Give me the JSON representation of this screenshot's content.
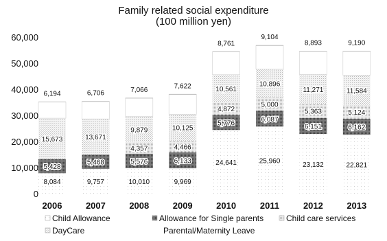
{
  "chart_data": {
    "type": "bar",
    "stacked": true,
    "title": "Family related social expenditure",
    "subtitle": "(100 million yen)",
    "xlabel": "",
    "ylabel": "",
    "ylim": [
      0,
      60000
    ],
    "yticks": [
      "0",
      "10,000",
      "20,000",
      "30,000",
      "40,000",
      "50,000",
      "60,000"
    ],
    "grid": false,
    "legend_position": "bottom",
    "categories": [
      "2006",
      "2007",
      "2008",
      "2009",
      "2010",
      "2011",
      "2012",
      "2013"
    ],
    "series": [
      {
        "name": "Child Allowance",
        "values": [
          8084,
          9757,
          10010,
          9969,
          24641,
          25960,
          23132,
          22821
        ],
        "labels": [
          "8,084",
          "9,757",
          "10,010",
          "9,969",
          "24,641",
          "25,960",
          "23,132",
          "22,821"
        ],
        "color": "#f1f1f1"
      },
      {
        "name": "Allowance for Single parents",
        "values": [
          5428,
          5468,
          5576,
          6133,
          5776,
          6087,
          6151,
          6162
        ],
        "labels": [
          "5,428",
          "5,468",
          "5,576",
          "6,133",
          "5,776",
          "6,087",
          "6,151",
          "6,162"
        ],
        "color": "#6b6b6b"
      },
      {
        "name": "Child care services",
        "values": [
          0,
          0,
          4357,
          4466,
          4872,
          5000,
          5363,
          5124
        ],
        "labels": [
          "",
          "",
          "4,357",
          "4,466",
          "4,872",
          "5,000",
          "5,363",
          "5,124"
        ],
        "color": "#d2d2d2"
      },
      {
        "name": "DayCare",
        "values": [
          15673,
          13671,
          9879,
          10125,
          10561,
          10896,
          11271,
          11584
        ],
        "labels": [
          "15,673",
          "13,671",
          "9,879",
          "10,125",
          "10,561",
          "10,896",
          "11,271",
          "11,584"
        ],
        "color": "#e2e2e2"
      },
      {
        "name": "Parental/Maternity Leave",
        "values": [
          6194,
          6706,
          7066,
          7622,
          8761,
          9104,
          8893,
          9190
        ],
        "labels": [
          "6,194",
          "6,706",
          "7,066",
          "7,622",
          "8,761",
          "9,104",
          "8,893",
          "9,190"
        ],
        "color": "#ffffff"
      }
    ]
  }
}
